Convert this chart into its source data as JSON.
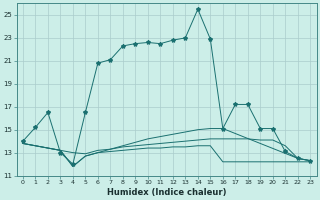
{
  "xlabel": "Humidex (Indice chaleur)",
  "background_color": "#cceee8",
  "grid_color": "#aacccc",
  "line_color": "#1a7070",
  "xlim": [
    -0.5,
    23.5
  ],
  "ylim": [
    11,
    26
  ],
  "yticks": [
    11,
    13,
    15,
    17,
    19,
    21,
    23,
    25
  ],
  "xticks": [
    0,
    1,
    2,
    3,
    4,
    5,
    6,
    7,
    8,
    9,
    10,
    11,
    12,
    13,
    14,
    15,
    16,
    17,
    18,
    19,
    20,
    21,
    22,
    23
  ],
  "curve_main_x": [
    0,
    1,
    2,
    3,
    4,
    5,
    6,
    7,
    8,
    9,
    10,
    11,
    12,
    13,
    14,
    15,
    16,
    17,
    18,
    19,
    20,
    21,
    22,
    23
  ],
  "curve_main_y": [
    14.0,
    15.2,
    16.5,
    13.0,
    12.0,
    16.5,
    20.8,
    21.1,
    22.3,
    22.5,
    22.6,
    22.5,
    22.8,
    23.0,
    25.5,
    22.9,
    15.1,
    17.2,
    17.2,
    15.1,
    15.1,
    13.1,
    12.5,
    12.3
  ],
  "curve2_x": [
    0,
    3,
    4,
    5,
    6,
    7,
    8,
    9,
    10,
    11,
    12,
    13,
    14,
    15,
    16,
    17,
    18,
    19,
    20,
    21,
    22,
    23
  ],
  "curve2_y": [
    13.8,
    13.2,
    13.0,
    12.9,
    13.2,
    13.3,
    13.5,
    13.6,
    13.7,
    13.8,
    13.9,
    14.0,
    14.1,
    14.2,
    14.2,
    14.2,
    14.2,
    14.1,
    14.1,
    13.6,
    12.5,
    12.3
  ],
  "curve3_x": [
    0,
    3,
    4,
    5,
    6,
    7,
    8,
    9,
    10,
    11,
    12,
    13,
    14,
    15,
    16,
    22,
    23
  ],
  "curve3_y": [
    13.8,
    13.2,
    11.8,
    12.7,
    13.0,
    13.3,
    13.6,
    13.9,
    14.2,
    14.4,
    14.6,
    14.8,
    15.0,
    15.1,
    15.1,
    12.5,
    12.3
  ],
  "curve4_x": [
    0,
    3,
    4,
    5,
    6,
    7,
    8,
    9,
    10,
    11,
    12,
    13,
    14,
    15,
    16,
    17,
    18,
    19,
    20,
    21,
    22,
    23
  ],
  "curve4_y": [
    13.8,
    13.2,
    11.8,
    12.7,
    13.0,
    13.1,
    13.2,
    13.3,
    13.4,
    13.4,
    13.5,
    13.5,
    13.6,
    13.6,
    12.2,
    12.2,
    12.2,
    12.2,
    12.2,
    12.2,
    12.2,
    12.2
  ]
}
